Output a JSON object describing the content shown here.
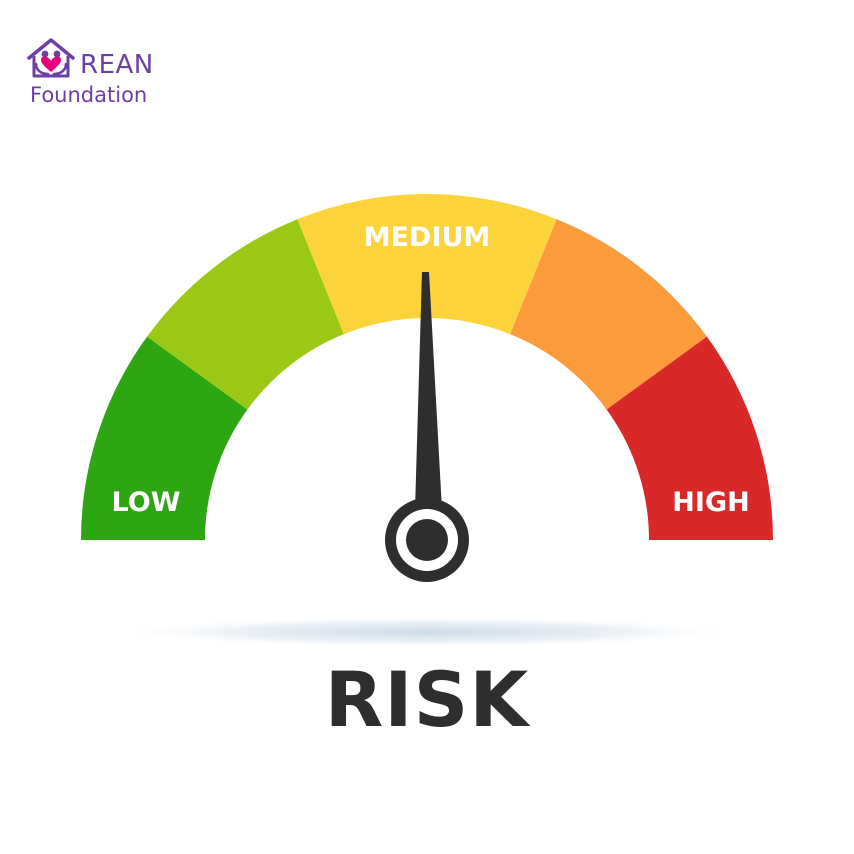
{
  "logo": {
    "name": "REAN",
    "subtitle": "Foundation",
    "color": "#6b3fa3"
  },
  "gauge": {
    "labels": {
      "low": "LOW",
      "medium": "MEDIUM",
      "high": "HIGH"
    },
    "segment_colors": [
      "#2ea614",
      "#9bc814",
      "#fdd33c",
      "#fb9b3b",
      "#d82828"
    ],
    "needle_color": "#2e2e2e",
    "level": 0.5
  },
  "caption": "RISK"
}
